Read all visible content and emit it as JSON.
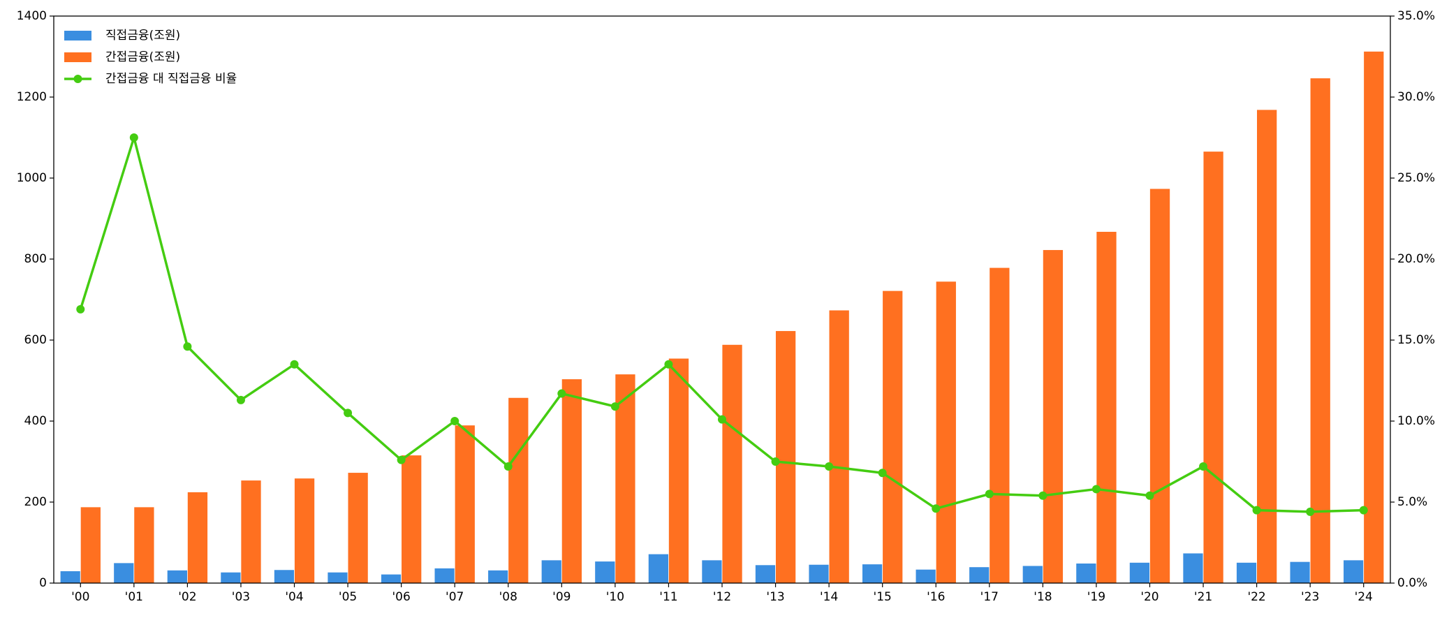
{
  "chart_data": {
    "type": "bar_line",
    "categories": [
      "'00",
      "'01",
      "'02",
      "'03",
      "'04",
      "'05",
      "'06",
      "'07",
      "'08",
      "'09",
      "'10",
      "'11",
      "'12",
      "'13",
      "'14",
      "'15",
      "'16",
      "'17",
      "'18",
      "'19",
      "'20",
      "'21",
      "'22",
      "'23",
      "'24"
    ],
    "series": [
      {
        "name": "직접금융(조원)",
        "type": "bar",
        "color": "#3a8ee0",
        "values": [
          30,
          50,
          32,
          27,
          33,
          27,
          22,
          37,
          32,
          57,
          54,
          72,
          57,
          45,
          46,
          47,
          34,
          40,
          43,
          49,
          51,
          74,
          51,
          53,
          57
        ]
      },
      {
        "name": "간접금융(조원)",
        "type": "bar",
        "color": "#ff7020",
        "values": [
          188,
          188,
          225,
          254,
          259,
          273,
          316,
          390,
          458,
          504,
          516,
          555,
          589,
          623,
          674,
          722,
          745,
          779,
          823,
          868,
          974,
          1066,
          1169,
          1247,
          1313
        ]
      },
      {
        "name": "간접금융 대 직접금융 비율",
        "type": "line",
        "axis": "y2",
        "color": "#44cc11",
        "values": [
          16.9,
          27.5,
          14.6,
          11.3,
          13.5,
          10.5,
          7.6,
          10.0,
          7.2,
          11.7,
          10.9,
          13.5,
          10.1,
          7.5,
          7.2,
          6.8,
          4.6,
          5.5,
          5.4,
          5.8,
          5.4,
          7.2,
          4.5,
          4.4,
          4.5
        ]
      }
    ],
    "ylim": [
      0,
      1400
    ],
    "yticks": [
      0,
      200,
      400,
      600,
      800,
      1000,
      1200,
      1400
    ],
    "y2lim": [
      0,
      35
    ],
    "y2ticks": [
      {
        "value": 0,
        "label": "0.0%"
      },
      {
        "value": 5,
        "label": "5.0%"
      },
      {
        "value": 10,
        "label": "10.0%"
      },
      {
        "value": 15,
        "label": "15.0%"
      },
      {
        "value": 20,
        "label": "20.0%"
      },
      {
        "value": 25,
        "label": "25.0%"
      },
      {
        "value": 30,
        "label": "30.0%"
      },
      {
        "value": 35,
        "label": "35.0%"
      }
    ],
    "legend": "upper left",
    "grid": false
  }
}
